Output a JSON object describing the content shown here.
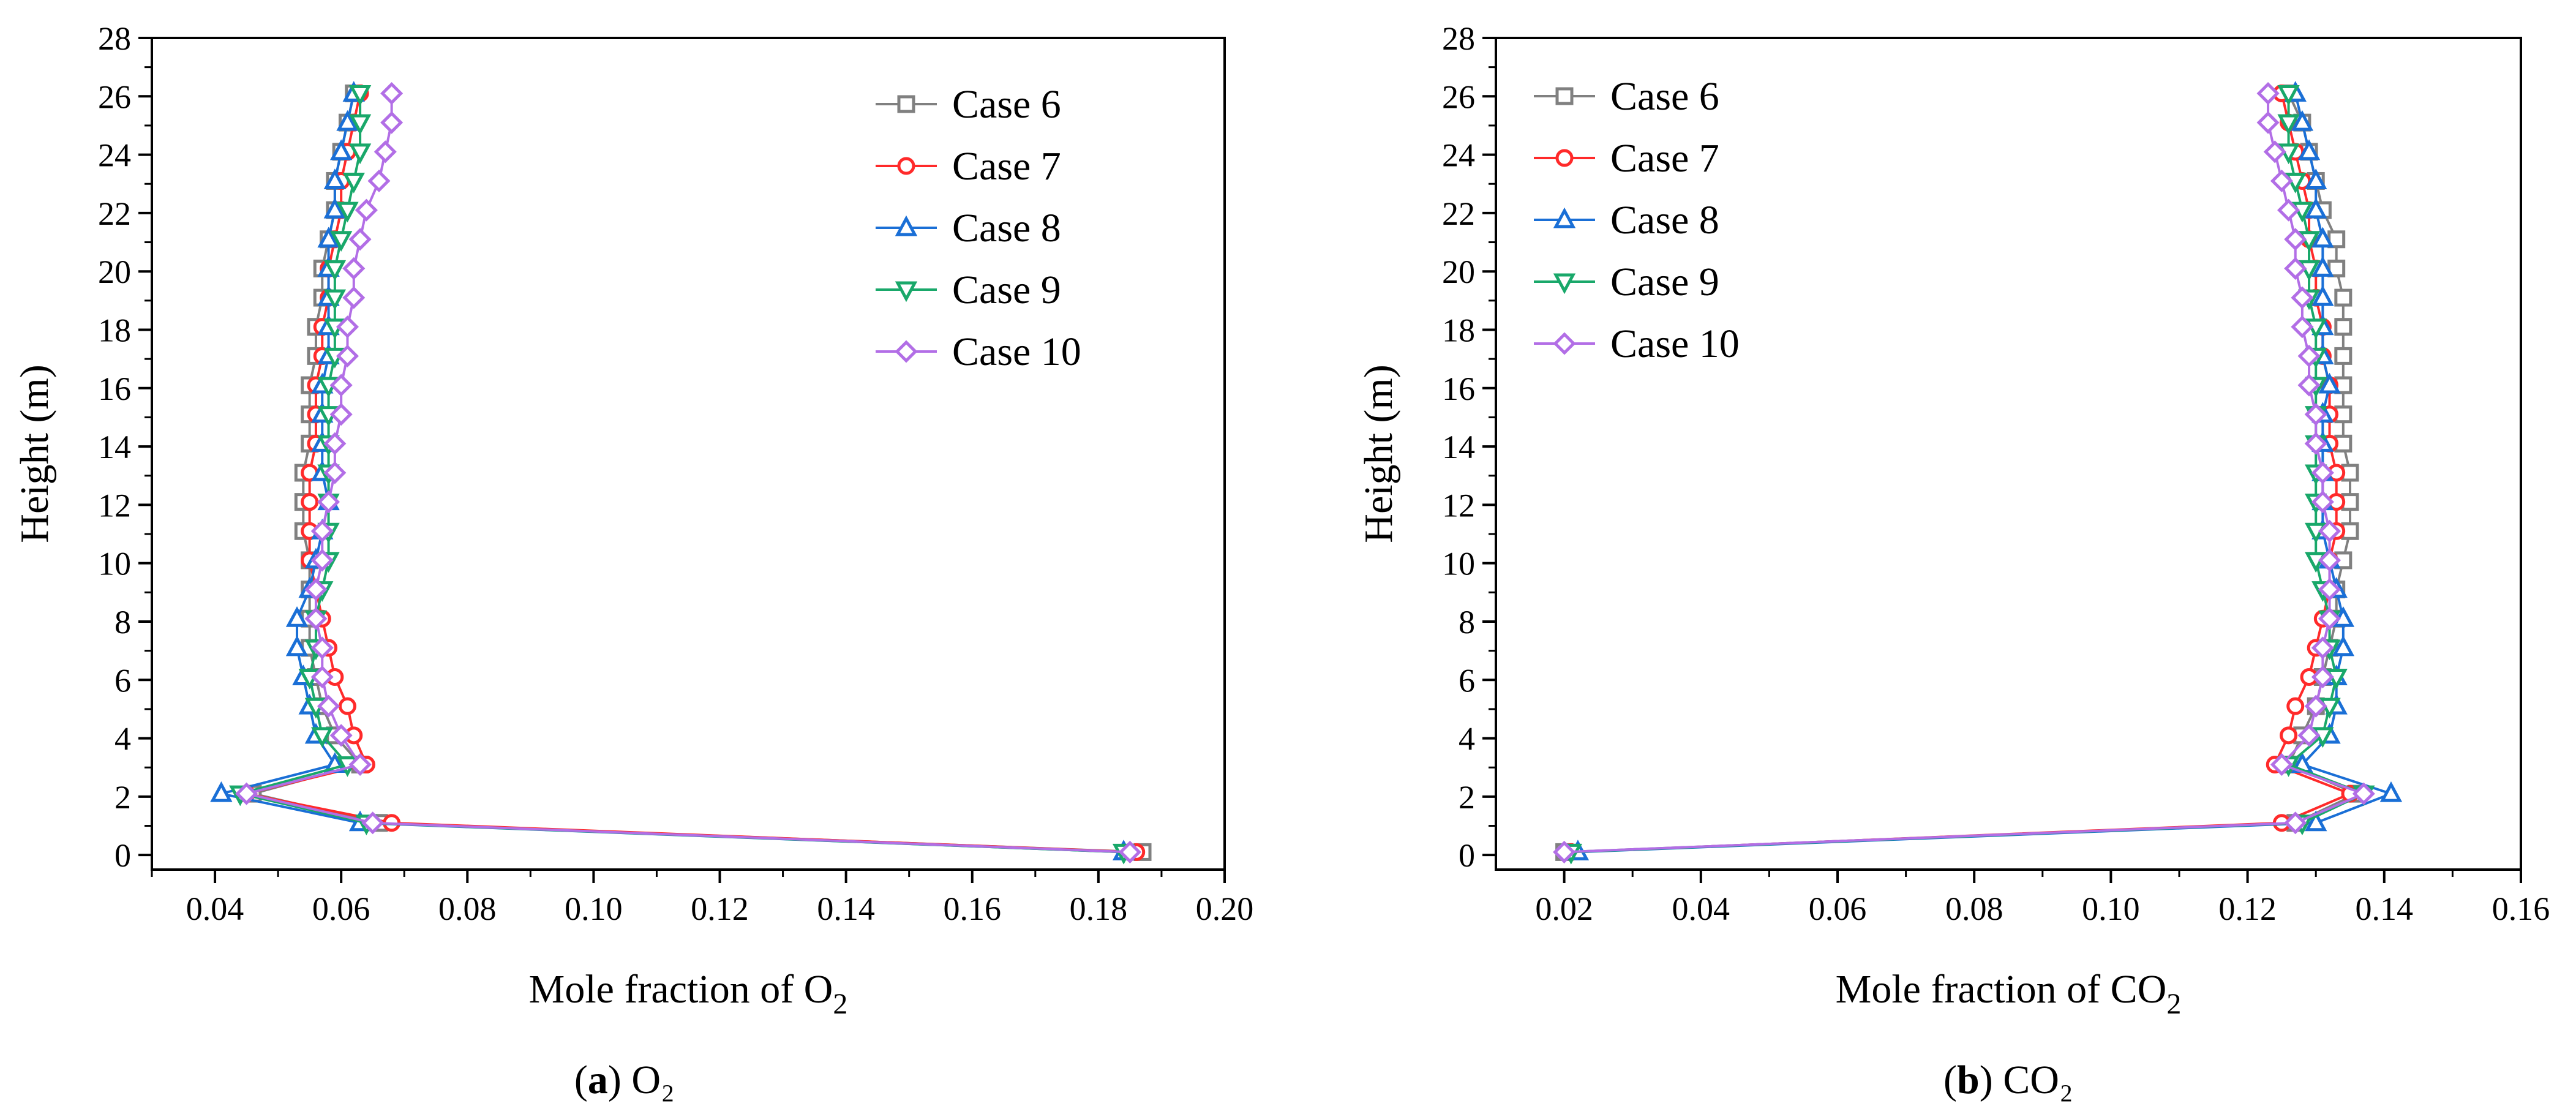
{
  "colors": {
    "Case 6": "#808080",
    "Case 7": "#ff2a2a",
    "Case 8": "#1a6fd6",
    "Case 9": "#19a86a",
    "Case 10": "#b26ee6"
  },
  "chart_data": [
    {
      "id": "O2",
      "type": "line",
      "caption_letter": "a",
      "caption_text": "O₂",
      "xlabel_main": "Mole fraction of O",
      "xlabel_sub": "2",
      "ylabel": "Height (m)",
      "xlim": [
        0.03,
        0.2
      ],
      "ylim": [
        -0.5,
        28
      ],
      "xticks": [
        0.04,
        0.06,
        0.08,
        0.1,
        0.12,
        0.14,
        0.16,
        0.18,
        0.2
      ],
      "xtick_labels": [
        "0.04",
        "0.06",
        "0.08",
        "0.10",
        "0.12",
        "0.14",
        "0.16",
        "0.18",
        "0.20"
      ],
      "yticks": [
        0,
        2,
        4,
        6,
        8,
        10,
        12,
        14,
        16,
        18,
        20,
        22,
        24,
        26,
        28
      ],
      "ytick_labels": [
        "0",
        "2",
        "4",
        "6",
        "8",
        "10",
        "12",
        "14",
        "16",
        "18",
        "20",
        "22",
        "24",
        "26",
        "28"
      ],
      "legend_position": "top-right",
      "y": [
        0.1,
        1.1,
        2.1,
        3.1,
        4.1,
        5.1,
        6.1,
        7.1,
        8.1,
        9.1,
        10.1,
        11.1,
        12.1,
        13.1,
        14.1,
        15.1,
        16.1,
        17.1,
        18.1,
        19.1,
        20.1,
        21.1,
        22.1,
        23.1,
        24.1,
        25.1,
        26.1
      ],
      "series": [
        {
          "name": "Case 6",
          "marker": "square",
          "values": [
            0.187,
            0.066,
            0.046,
            0.063,
            0.059,
            0.057,
            0.056,
            0.055,
            0.055,
            0.055,
            0.055,
            0.054,
            0.054,
            0.054,
            0.055,
            0.055,
            0.055,
            0.056,
            0.056,
            0.057,
            0.057,
            0.058,
            0.059,
            0.059,
            0.06,
            0.061,
            0.062
          ]
        },
        {
          "name": "Case 7",
          "marker": "circle",
          "values": [
            0.186,
            0.068,
            0.045,
            0.064,
            0.062,
            0.061,
            0.059,
            0.058,
            0.057,
            0.056,
            0.055,
            0.055,
            0.055,
            0.055,
            0.056,
            0.056,
            0.056,
            0.057,
            0.057,
            0.058,
            0.058,
            0.059,
            0.06,
            0.06,
            0.061,
            0.062,
            0.063
          ]
        },
        {
          "name": "Case 8",
          "marker": "triangle-up",
          "values": [
            0.184,
            0.063,
            0.041,
            0.059,
            0.056,
            0.055,
            0.054,
            0.053,
            0.053,
            0.055,
            0.056,
            0.057,
            0.058,
            0.057,
            0.057,
            0.057,
            0.057,
            0.058,
            0.058,
            0.058,
            0.058,
            0.058,
            0.059,
            0.059,
            0.06,
            0.061,
            0.062
          ]
        },
        {
          "name": "Case 9",
          "marker": "triangle-down",
          "values": [
            0.184,
            0.064,
            0.044,
            0.061,
            0.057,
            0.056,
            0.055,
            0.056,
            0.056,
            0.057,
            0.058,
            0.058,
            0.058,
            0.058,
            0.058,
            0.058,
            0.058,
            0.059,
            0.059,
            0.059,
            0.059,
            0.06,
            0.061,
            0.062,
            0.063,
            0.063,
            0.063
          ]
        },
        {
          "name": "Case 10",
          "marker": "diamond",
          "values": [
            0.185,
            0.065,
            0.045,
            0.063,
            0.06,
            0.058,
            0.057,
            0.057,
            0.056,
            0.056,
            0.057,
            0.057,
            0.058,
            0.059,
            0.059,
            0.06,
            0.06,
            0.061,
            0.061,
            0.062,
            0.062,
            0.063,
            0.064,
            0.066,
            0.067,
            0.068,
            0.068
          ]
        }
      ]
    },
    {
      "id": "CO2",
      "type": "line",
      "caption_letter": "b",
      "caption_text": "CO₂",
      "xlabel_main": "Mole fraction of CO",
      "xlabel_sub": "2",
      "ylabel": "Height (m)",
      "xlim": [
        0.01,
        0.16
      ],
      "ylim": [
        -0.5,
        28
      ],
      "xticks": [
        0.02,
        0.04,
        0.06,
        0.08,
        0.1,
        0.12,
        0.14,
        0.16
      ],
      "xtick_labels": [
        "0.02",
        "0.04",
        "0.06",
        "0.08",
        "0.10",
        "0.12",
        "0.14",
        "0.16"
      ],
      "yticks": [
        0,
        2,
        4,
        6,
        8,
        10,
        12,
        14,
        16,
        18,
        20,
        22,
        24,
        26,
        28
      ],
      "ytick_labels": [
        "0",
        "2",
        "4",
        "6",
        "8",
        "10",
        "12",
        "14",
        "16",
        "18",
        "20",
        "22",
        "24",
        "26",
        "28"
      ],
      "legend_position": "top-left",
      "y": [
        0.1,
        1.1,
        2.1,
        3.1,
        4.1,
        5.1,
        6.1,
        7.1,
        8.1,
        9.1,
        10.1,
        11.1,
        12.1,
        13.1,
        14.1,
        15.1,
        16.1,
        17.1,
        18.1,
        19.1,
        20.1,
        21.1,
        22.1,
        23.1,
        24.1,
        25.1,
        26.1
      ],
      "series": [
        {
          "name": "Case 6",
          "marker": "square",
          "values": [
            0.02,
            0.127,
            0.136,
            0.126,
            0.128,
            0.13,
            0.131,
            0.132,
            0.133,
            0.133,
            0.134,
            0.135,
            0.135,
            0.135,
            0.134,
            0.134,
            0.134,
            0.134,
            0.134,
            0.134,
            0.133,
            0.133,
            0.131,
            0.13,
            0.129,
            0.128,
            0.126
          ]
        },
        {
          "name": "Case 7",
          "marker": "circle",
          "values": [
            0.021,
            0.125,
            0.135,
            0.124,
            0.126,
            0.127,
            0.129,
            0.13,
            0.131,
            0.132,
            0.132,
            0.133,
            0.133,
            0.133,
            0.132,
            0.132,
            0.132,
            0.131,
            0.131,
            0.13,
            0.13,
            0.129,
            0.129,
            0.128,
            0.127,
            0.126,
            0.125
          ]
        },
        {
          "name": "Case 8",
          "marker": "triangle-up",
          "values": [
            0.022,
            0.13,
            0.141,
            0.128,
            0.132,
            0.133,
            0.133,
            0.134,
            0.134,
            0.133,
            0.132,
            0.131,
            0.131,
            0.131,
            0.131,
            0.131,
            0.132,
            0.131,
            0.131,
            0.131,
            0.131,
            0.131,
            0.13,
            0.13,
            0.129,
            0.128,
            0.127
          ]
        },
        {
          "name": "Case 9",
          "marker": "triangle-down",
          "values": [
            0.021,
            0.128,
            0.137,
            0.126,
            0.131,
            0.132,
            0.133,
            0.132,
            0.132,
            0.131,
            0.13,
            0.13,
            0.13,
            0.13,
            0.13,
            0.13,
            0.13,
            0.13,
            0.13,
            0.129,
            0.129,
            0.129,
            0.128,
            0.127,
            0.126,
            0.126,
            0.126
          ]
        },
        {
          "name": "Case 10",
          "marker": "diamond",
          "values": [
            0.02,
            0.127,
            0.137,
            0.125,
            0.129,
            0.13,
            0.131,
            0.131,
            0.132,
            0.132,
            0.132,
            0.132,
            0.131,
            0.131,
            0.13,
            0.13,
            0.129,
            0.129,
            0.128,
            0.128,
            0.127,
            0.127,
            0.126,
            0.125,
            0.124,
            0.123,
            0.123
          ]
        }
      ]
    }
  ]
}
